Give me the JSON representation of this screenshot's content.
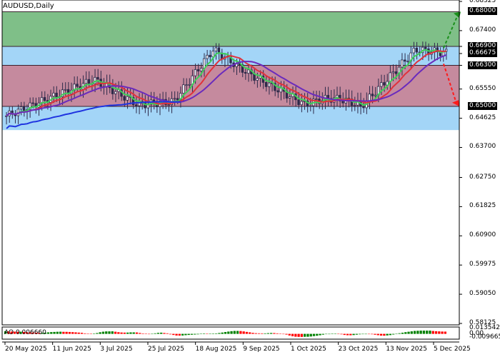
{
  "window": {
    "title": "AUDUSD,Daily",
    "symbol": "AUDUSD",
    "timeframe": "Daily"
  },
  "indicator": {
    "label": "AO 0.006660",
    "name": "AO",
    "value": "0.006660"
  },
  "colors": {
    "resistance_zone": "#7fbf88",
    "range_zone": "#c58a9e",
    "support_zone": "#a3d5f7",
    "candle": "#2e2a4a",
    "ma_fast": "#3ecf5a",
    "ma_mid": "#e0313b",
    "ma_slow": "#6a2bbd",
    "ma_base": "#1f34e0",
    "ao_up": "#008000",
    "ao_down": "#ff0000",
    "arrow_up": "#1b8f1b",
    "arrow_down": "#ff1a1a"
  },
  "chart_data": [
    {
      "type": "candlestick",
      "title": "AUDUSD,Daily",
      "ylim": [
        0.58125,
        0.68325
      ],
      "y_ticks": [
        "0.68325",
        "0.67400",
        "0.66900",
        "0.66675",
        "0.66300",
        "0.65550",
        "0.64625",
        "0.63700",
        "0.62750",
        "0.61825",
        "0.60900",
        "0.59975",
        "0.59050",
        "0.58125"
      ],
      "highlighted_levels": [
        "0.68000",
        "0.66900",
        "0.66675",
        "0.66300",
        "0.65000"
      ],
      "x_ticks": [
        "20 May 2025",
        "11 Jun 2025",
        "3 Jul 2025",
        "25 Jul 2025",
        "18 Aug 2025",
        "9 Sep 2025",
        "1 Oct 2025",
        "23 Oct 2025",
        "13 Nov 2025",
        "5 Dec 2025"
      ],
      "zones": [
        {
          "name": "resistance",
          "from": 0.669,
          "to": 0.68
        },
        {
          "name": "upper_support",
          "from": 0.663,
          "to": 0.669
        },
        {
          "name": "range",
          "from": 0.65,
          "to": 0.663
        },
        {
          "name": "lower_support",
          "from": 0.6425,
          "to": 0.65
        }
      ],
      "forecast": [
        {
          "direction": "up",
          "target": 0.68
        },
        {
          "direction": "down",
          "target": 0.65
        }
      ],
      "last_price": 0.66675
    },
    {
      "type": "bar",
      "title": "AO 0.006660",
      "ylim": [
        -0.009665,
        0.013542
      ],
      "y_ticks": [
        "0.013542",
        "0.00",
        "-0.009665"
      ],
      "values": [
        0.0066,
        0.0062,
        0.0058,
        0.0055,
        0.0052,
        0.0054,
        0.0049,
        0.0042,
        0.004,
        0.0035,
        0.003,
        0.0025,
        0.0025,
        0.003,
        0.0038,
        0.0044,
        0.0048,
        0.0052,
        0.0054,
        0.0051,
        0.005,
        0.0047,
        0.0043,
        0.0038,
        0.0032,
        0.0026,
        0.0013,
        0.0006,
        0.0004,
        0.001,
        0.002,
        0.004,
        0.0054,
        0.0061,
        0.0062,
        0.0063,
        0.0053,
        0.0042,
        0.0034,
        0.0031,
        0.0032,
        0.0037,
        0.0037,
        0.0035,
        0.0022,
        0.0011,
        0.0002,
        -0.0002,
        0.0001,
        0.0014,
        0.0025,
        0.003,
        0.0022,
        0.0014,
        -0.0013,
        -0.0028,
        -0.0041,
        -0.0043,
        -0.0041,
        -0.0033,
        -0.0027,
        -0.0022,
        -0.0017,
        -0.0012,
        0.0006,
        0.0011,
        0.0009,
        0.0009,
        0.001,
        0.0012,
        0.0021,
        0.0033,
        0.0046,
        0.0057,
        0.0067,
        0.0073,
        0.0073,
        0.007,
        0.0061,
        0.0049,
        0.0038,
        0.0025,
        0.0017,
        0.0014,
        0.0013,
        0.0013,
        0.0018,
        0.0022,
        0.002,
        0.0013,
        0.0006,
        -0.0003,
        -0.0018,
        -0.0041,
        -0.0059,
        -0.0071,
        -0.0075,
        -0.0076,
        -0.0073,
        -0.0072,
        -0.0066,
        -0.0056,
        -0.0047,
        -0.0035,
        -0.002,
        -0.0008,
        -0.0003,
        0.0003,
        0.0006,
        0.0001,
        -0.0012,
        -0.0027,
        -0.0034,
        -0.0035,
        -0.003,
        -0.002,
        -0.0012,
        -0.0003,
        -0.0001,
        -0.0004,
        -0.0011,
        -0.0022,
        -0.0033,
        -0.0043,
        -0.0046,
        -0.0039,
        -0.0031,
        -0.0017,
        0.0001,
        0.0016,
        0.0029,
        0.0042,
        0.0053,
        0.0063,
        0.0073,
        0.0077,
        0.0081,
        0.0081,
        0.0081,
        0.0081,
        0.0072,
        0.0066,
        0.0062,
        0.0058,
        0.0056
      ],
      "colors_rule": "green when rising, red when falling"
    }
  ]
}
